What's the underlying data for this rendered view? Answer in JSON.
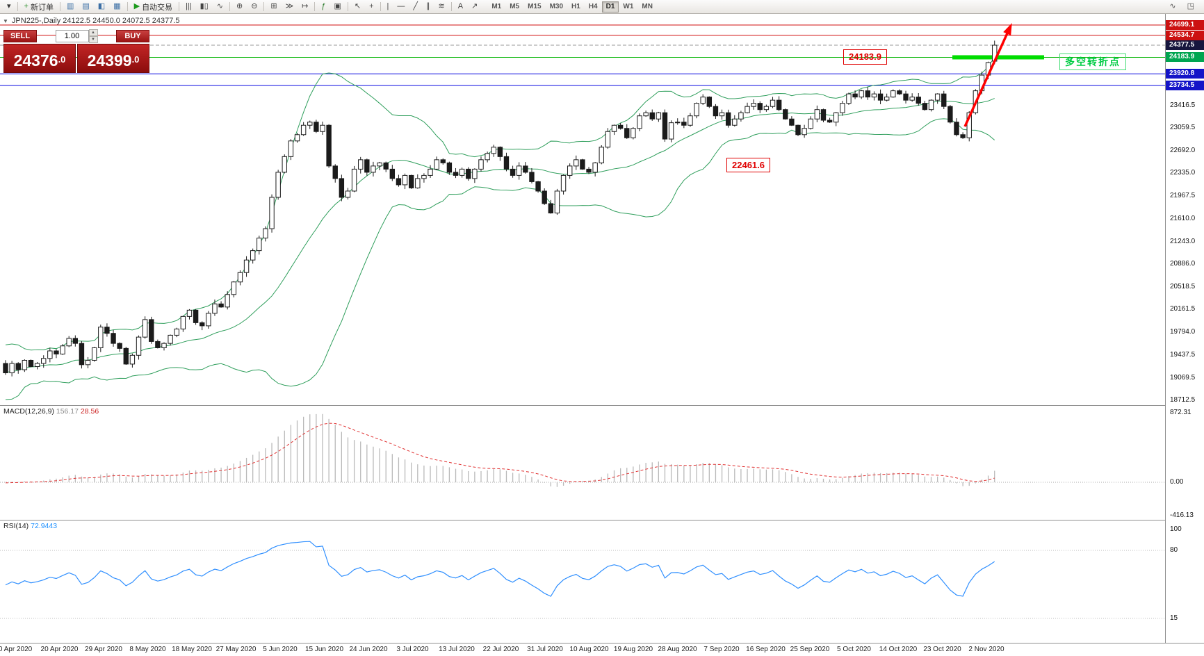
{
  "toolbar": {
    "groups": [
      {
        "items": [
          {
            "name": "chart-dropdown",
            "glyph": "▾",
            "color": "#333"
          }
        ]
      },
      {
        "items": [
          {
            "name": "new-order",
            "glyph": "+",
            "label": "新订单",
            "color": "#2a8f2a"
          }
        ]
      },
      {
        "items": [
          {
            "name": "market-watch",
            "glyph": "▥",
            "color": "#3a6ea5"
          },
          {
            "name": "data-window",
            "glyph": "▤",
            "color": "#3a6ea5"
          },
          {
            "name": "navigator",
            "glyph": "◧",
            "color": "#3a6ea5"
          },
          {
            "name": "terminal",
            "glyph": "▦",
            "color": "#3a6ea5"
          }
        ]
      },
      {
        "items": [
          {
            "name": "autotrading",
            "glyph": "▶",
            "label": "自动交易",
            "color": "#1d9a1d"
          }
        ]
      },
      {
        "items": [
          {
            "name": "chart-bars",
            "glyph": "|||",
            "color": "#444"
          },
          {
            "name": "chart-candles",
            "glyph": "▮▯",
            "color": "#444"
          },
          {
            "name": "chart-line",
            "glyph": "∿",
            "color": "#444"
          }
        ]
      },
      {
        "items": [
          {
            "name": "zoom-in",
            "glyph": "⊕",
            "color": "#444"
          },
          {
            "name": "zoom-out",
            "glyph": "⊖",
            "color": "#444"
          }
        ]
      },
      {
        "items": [
          {
            "name": "tile-windows",
            "glyph": "⊞",
            "color": "#444"
          },
          {
            "name": "auto-scroll",
            "glyph": "≫",
            "color": "#444"
          },
          {
            "name": "chart-shift",
            "glyph": "↦",
            "color": "#444"
          }
        ]
      },
      {
        "items": [
          {
            "name": "indicators",
            "glyph": "ƒ",
            "color": "#2a7a2a"
          },
          {
            "name": "templates",
            "glyph": "▣",
            "color": "#444"
          }
        ]
      },
      {
        "items": [
          {
            "name": "cursor",
            "glyph": "↖",
            "color": "#444"
          },
          {
            "name": "crosshair",
            "glyph": "+",
            "color": "#444"
          }
        ]
      },
      {
        "items": [
          {
            "name": "vertical-line",
            "glyph": "|",
            "color": "#444"
          },
          {
            "name": "horizontal-line",
            "glyph": "—",
            "color": "#444"
          },
          {
            "name": "trendline",
            "glyph": "╱",
            "color": "#444"
          },
          {
            "name": "equidistant-channel",
            "glyph": "∥",
            "color": "#444"
          },
          {
            "name": "fibonacci",
            "glyph": "≋",
            "color": "#444"
          }
        ]
      },
      {
        "items": [
          {
            "name": "text-label",
            "glyph": "A",
            "color": "#444"
          },
          {
            "name": "arrows-tool",
            "glyph": "↗",
            "color": "#444"
          }
        ]
      }
    ],
    "right_icons": [
      {
        "name": "quick-chart",
        "glyph": "∿",
        "color": "#555"
      },
      {
        "name": "toolbar-windows",
        "glyph": "◳",
        "color": "#555"
      }
    ],
    "timeframes": [
      "M1",
      "M5",
      "M15",
      "M30",
      "H1",
      "H4",
      "D1",
      "W1",
      "MN"
    ],
    "active_timeframe": "D1"
  },
  "chart": {
    "title": "JPN225-,Daily  24122.5 24450.0 24072.5 24377.5"
  },
  "one_click": {
    "sell_label": "SELL",
    "buy_label": "BUY",
    "volume": "1.00",
    "sell_main": "24376",
    "sell_frac": ".0",
    "buy_main": "24399",
    "buy_frac": ".0"
  },
  "annotations": {
    "level1": "24183.9",
    "level2": "22461.6",
    "turning_point": "多空转折点"
  },
  "macd": {
    "label": "MACD(12,26,9)",
    "value_main": "156.17",
    "value_signal": "28.56",
    "scale": [
      {
        "label": "872.31",
        "value": 872.31
      },
      {
        "label": "0.00",
        "value": 0
      },
      {
        "label": "-416.13",
        "value": -416.13
      }
    ]
  },
  "rsi": {
    "label": "RSI(14)",
    "value": "72.9443",
    "scale": [
      {
        "label": "100",
        "value": 100
      },
      {
        "label": "80",
        "value": 80
      },
      {
        "label": "15",
        "value": 15
      }
    ]
  },
  "price_scale": {
    "boxes": [
      {
        "label": "24699.1",
        "price": 24699.1,
        "bg": "#cc1111"
      },
      {
        "label": "24534.7",
        "price": 24534.7,
        "bg": "#cc1111"
      },
      {
        "label": "24377.5",
        "price": 24377.5,
        "bg": "#16163e"
      },
      {
        "label": "24183.9",
        "price": 24183.9,
        "bg": "#00a550"
      },
      {
        "label": "23920.8",
        "price": 23920.8,
        "bg": "#1414c8"
      },
      {
        "label": "23734.5",
        "price": 23734.5,
        "bg": "#1414c8"
      }
    ],
    "ticks": [
      {
        "label": "23416.5",
        "price": 23416.5
      },
      {
        "label": "23059.5",
        "price": 23059.5
      },
      {
        "label": "22692.0",
        "price": 22692.0
      },
      {
        "label": "22335.0",
        "price": 22335.0
      },
      {
        "label": "21967.5",
        "price": 21967.5
      },
      {
        "label": "21610.0",
        "price": 21610.0
      },
      {
        "label": "21243.0",
        "price": 21243.0
      },
      {
        "label": "20886.0",
        "price": 20886.0
      },
      {
        "label": "20518.5",
        "price": 20518.5
      },
      {
        "label": "20161.5",
        "price": 20161.5
      },
      {
        "label": "19794.0",
        "price": 19794.0
      },
      {
        "label": "19437.5",
        "price": 19437.5
      },
      {
        "label": "19069.5",
        "price": 19069.5
      },
      {
        "label": "18712.5",
        "price": 18712.5
      }
    ]
  },
  "date_axis": {
    "labels": [
      "0 Apr 2020",
      "20 Apr 2020",
      "29 Apr 2020",
      "8 May 2020",
      "18 May 2020",
      "27 May 2020",
      "5 Jun 2020",
      "15 Jun 2020",
      "24 Jun 2020",
      "3 Jul 2020",
      "13 Jul 2020",
      "22 Jul 2020",
      "31 Jul 2020",
      "10 Aug 2020",
      "19 Aug 2020",
      "28 Aug 2020",
      "7 Sep 2020",
      "16 Sep 2020",
      "25 Sep 2020",
      "5 Oct 2020",
      "14 Oct 2020",
      "23 Oct 2020",
      "2 Nov 2020"
    ]
  },
  "chart_data": {
    "type": "candlestick",
    "symbol": "JPN225-",
    "timeframe": "Daily",
    "current_ohlc": {
      "open": 24122.5,
      "high": 24450.0,
      "low": 24072.5,
      "close": 24377.5
    },
    "axis": {
      "price_top": 24699.1,
      "price_bottom": 18712.5
    },
    "pre_closes": [
      19350,
      19100,
      18800,
      18600,
      18900,
      19200,
      19000,
      19300,
      19500,
      19350,
      19100,
      18950,
      19200,
      19400,
      19100,
      19250,
      19400,
      19250,
      19350,
      19300
    ],
    "closes": [
      19150,
      19300,
      19200,
      19350,
      19250,
      19300,
      19380,
      19500,
      19450,
      19580,
      19700,
      19620,
      19280,
      19350,
      19550,
      19880,
      19780,
      19620,
      19540,
      19290,
      19430,
      19720,
      20000,
      19650,
      19550,
      19620,
      19750,
      19850,
      20050,
      20150,
      19950,
      19900,
      20100,
      20250,
      20200,
      20400,
      20600,
      20750,
      20950,
      21100,
      21300,
      21450,
      21950,
      22350,
      22600,
      22850,
      22950,
      23100,
      23150,
      23000,
      23100,
      22450,
      22250,
      21950,
      22050,
      22400,
      22550,
      22350,
      22450,
      22500,
      22400,
      22250,
      22150,
      22300,
      22100,
      22250,
      22300,
      22400,
      22550,
      22500,
      22350,
      22300,
      22400,
      22250,
      22400,
      22550,
      22650,
      22750,
      22600,
      22400,
      22300,
      22450,
      22350,
      22200,
      22050,
      21850,
      21700,
      22050,
      22300,
      22450,
      22550,
      22400,
      22350,
      22500,
      22750,
      23000,
      23100,
      23050,
      22900,
      23050,
      23250,
      23300,
      23200,
      23300,
      22880,
      23140,
      23150,
      23100,
      23250,
      23450,
      23550,
      23400,
      23250,
      23300,
      23100,
      23200,
      23300,
      23400,
      23450,
      23350,
      23400,
      23500,
      23350,
      23200,
      23100,
      22950,
      23050,
      23200,
      23350,
      23180,
      23150,
      23300,
      23450,
      23600,
      23550,
      23650,
      23550,
      23600,
      23500,
      23550,
      23650,
      23600,
      23500,
      23550,
      23450,
      23350,
      23500,
      23600,
      23400,
      23150,
      22950,
      22900,
      23300,
      23650,
      23900,
      24100,
      24377.5
    ],
    "horizontal_levels": [
      {
        "price": 24699.1,
        "color": "#d01010",
        "style": "solid"
      },
      {
        "price": 24534.7,
        "color": "#d01010",
        "style": "solid"
      },
      {
        "price": 24377.5,
        "color": "#9a9a9a",
        "style": "dash"
      },
      {
        "price": 24183.9,
        "color": "#00b400",
        "style": "solid"
      },
      {
        "price": 23920.8,
        "color": "#0a0ae0",
        "style": "solid"
      },
      {
        "price": 23734.5,
        "color": "#0a0ae0",
        "style": "solid"
      }
    ],
    "green_zone_price": 24183.9,
    "bollinger": {
      "period": 20,
      "deviation": 2,
      "color": "#2e9e5b"
    },
    "macd": {
      "fast": 12,
      "slow": 26,
      "signal": 9,
      "current_main": 156.17,
      "current_signal": 28.56,
      "scale_max": 872.31,
      "scale_min": -416.13
    },
    "rsi": {
      "period": 14,
      "current": 72.9443,
      "levels": [
        80,
        15
      ]
    },
    "trend_arrow": {
      "from_price": 23080,
      "to_price": 24640,
      "color": "#ff0000"
    }
  }
}
